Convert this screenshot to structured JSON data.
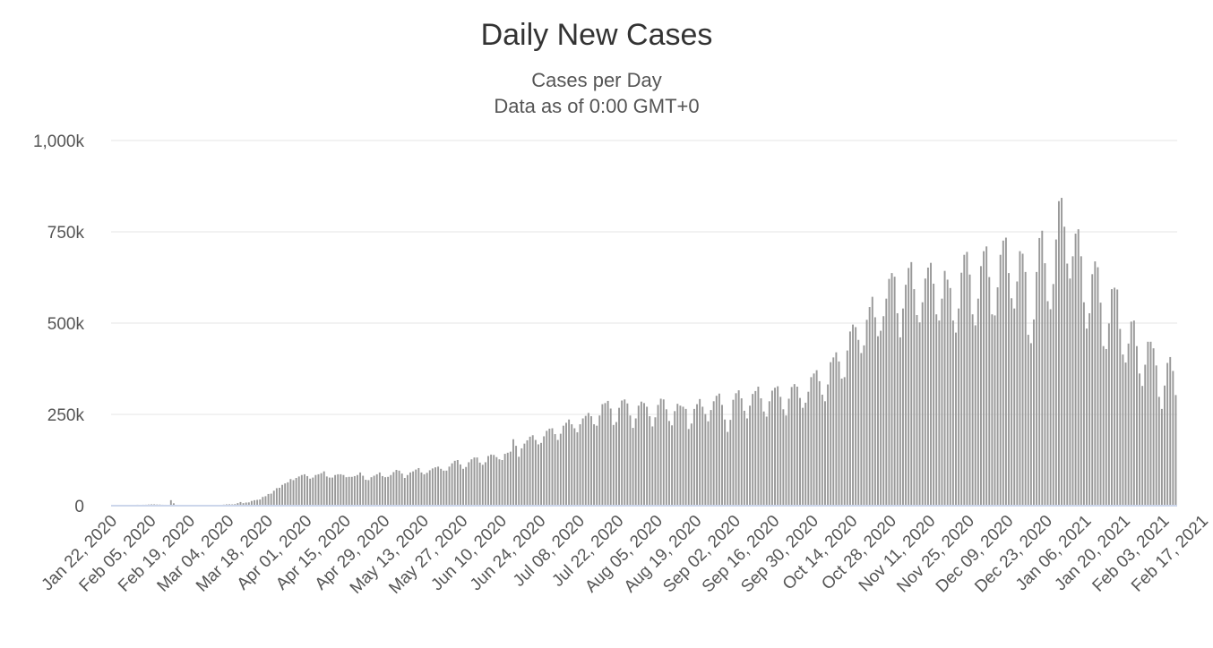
{
  "chart_data": {
    "type": "bar",
    "title": "Daily New Cases",
    "subtitle_lines": [
      "Cases per Day",
      "Data as of 0:00 GMT+0"
    ],
    "xlabel": "",
    "ylabel": "",
    "ylim": [
      0,
      1000000
    ],
    "y_ticks": [
      {
        "value": 0,
        "label": "0"
      },
      {
        "value": 250000,
        "label": "250k"
      },
      {
        "value": 500000,
        "label": "500k"
      },
      {
        "value": 750000,
        "label": "750k"
      },
      {
        "value": 1000000,
        "label": "1,000k"
      }
    ],
    "x_ticks": [
      "Jan 22, 2020",
      "Feb 05, 2020",
      "Feb 19, 2020",
      "Mar 04, 2020",
      "Mar 18, 2020",
      "Apr 01, 2020",
      "Apr 15, 2020",
      "Apr 29, 2020",
      "May 13, 2020",
      "May 27, 2020",
      "Jun 10, 2020",
      "Jun 24, 2020",
      "Jul 08, 2020",
      "Jul 22, 2020",
      "Aug 05, 2020",
      "Aug 19, 2020",
      "Sep 02, 2020",
      "Sep 16, 2020",
      "Sep 30, 2020",
      "Oct 14, 2020",
      "Oct 28, 2020",
      "Nov 11, 2020",
      "Nov 25, 2020",
      "Dec 09, 2020",
      "Dec 23, 2020",
      "Jan 06, 2021",
      "Jan 20, 2021",
      "Feb 03, 2021",
      "Feb 17, 2021"
    ],
    "grid": true,
    "legend": "none",
    "bar_color": "#999999",
    "grid_color": "#e6e6e6",
    "baseline_color": "#ccd6eb",
    "start_date": "2020-01-22",
    "end_date": "2021-02-23",
    "values": [
      500,
      300,
      800,
      600,
      700,
      2100,
      1700,
      2000,
      2100,
      2600,
      2000,
      2600,
      2700,
      3200,
      3700,
      3700,
      3200,
      3100,
      2600,
      2500,
      2100,
      15100,
      6500,
      2200,
      2100,
      2000,
      1900,
      500,
      600,
      1800,
      700,
      800,
      1000,
      1000,
      1100,
      1500,
      1300,
      1900,
      2000,
      2200,
      2900,
      3700,
      3900,
      3600,
      4300,
      7000,
      10000,
      7000,
      8600,
      9000,
      13000,
      15000,
      16000,
      17000,
      24000,
      26000,
      32000,
      33000,
      41000,
      48000,
      49000,
      57000,
      61000,
      64000,
      73000,
      70000,
      76000,
      80000,
      84000,
      86000,
      81000,
      74000,
      77000,
      84000,
      86000,
      89000,
      94000,
      80000,
      77000,
      77000,
      84000,
      86000,
      86000,
      84000,
      78000,
      79000,
      79000,
      81000,
      84000,
      91000,
      82000,
      71000,
      70000,
      78000,
      82000,
      86000,
      91000,
      81000,
      78000,
      79000,
      84000,
      92000,
      98000,
      96000,
      88000,
      76000,
      84000,
      91000,
      94000,
      99000,
      103000,
      91000,
      86000,
      90000,
      97000,
      102000,
      105000,
      107000,
      101000,
      96000,
      96000,
      107000,
      116000,
      123000,
      125000,
      113000,
      101000,
      106000,
      119000,
      127000,
      132000,
      132000,
      118000,
      112000,
      119000,
      136000,
      140000,
      139000,
      133000,
      127000,
      125000,
      142000,
      145000,
      148000,
      182000,
      164000,
      134000,
      157000,
      170000,
      179000,
      189000,
      193000,
      180000,
      168000,
      172000,
      190000,
      205000,
      211000,
      212000,
      196000,
      180000,
      197000,
      219000,
      227000,
      236000,
      223000,
      212000,
      201000,
      223000,
      239000,
      246000,
      254000,
      245000,
      223000,
      219000,
      247000,
      278000,
      281000,
      287000,
      266000,
      221000,
      229000,
      268000,
      288000,
      291000,
      280000,
      247000,
      213000,
      239000,
      274000,
      285000,
      281000,
      271000,
      245000,
      217000,
      242000,
      276000,
      293000,
      291000,
      264000,
      232000,
      220000,
      259000,
      279000,
      274000,
      271000,
      265000,
      210000,
      225000,
      265000,
      278000,
      292000,
      271000,
      251000,
      231000,
      262000,
      286000,
      301000,
      307000,
      276000,
      236000,
      202000,
      235000,
      290000,
      308000,
      316000,
      294000,
      260000,
      239000,
      274000,
      306000,
      314000,
      326000,
      294000,
      258000,
      244000,
      286000,
      315000,
      323000,
      327000,
      298000,
      264000,
      247000,
      293000,
      325000,
      333000,
      326000,
      295000,
      268000,
      282000,
      312000,
      352000,
      362000,
      371000,
      341000,
      304000,
      286000,
      332000,
      393000,
      406000,
      420000,
      395000,
      348000,
      352000,
      425000,
      477000,
      496000,
      489000,
      454000,
      418000,
      439000,
      509000,
      544000,
      572000,
      516000,
      464000,
      479000,
      519000,
      567000,
      621000,
      637000,
      627000,
      527000,
      461000,
      540000,
      605000,
      651000,
      667000,
      593000,
      522000,
      502000,
      557000,
      622000,
      652000,
      665000,
      608000,
      524000,
      507000,
      567000,
      643000,
      619000,
      596000,
      507000,
      474000,
      540000,
      638000,
      687000,
      695000,
      633000,
      524000,
      494000,
      567000,
      656000,
      697000,
      710000,
      626000,
      524000,
      521000,
      598000,
      687000,
      726000,
      734000,
      637000,
      568000,
      540000,
      614000,
      697000,
      690000,
      640000,
      468000,
      445000,
      510000,
      640000,
      733000,
      753000,
      664000,
      560000,
      538000,
      607000,
      729000,
      834000,
      843000,
      764000,
      663000,
      622000,
      683000,
      745000,
      757000,
      683000,
      557000,
      485000,
      527000,
      634000,
      669000,
      653000,
      556000,
      437000,
      429000,
      499000,
      593000,
      597000,
      592000,
      484000,
      414000,
      392000,
      444000,
      504000,
      507000,
      437000,
      362000,
      328000,
      386000,
      449000,
      449000,
      431000,
      384000,
      298000,
      265000,
      329000,
      391000,
      407000,
      369000,
      303000
    ]
  }
}
